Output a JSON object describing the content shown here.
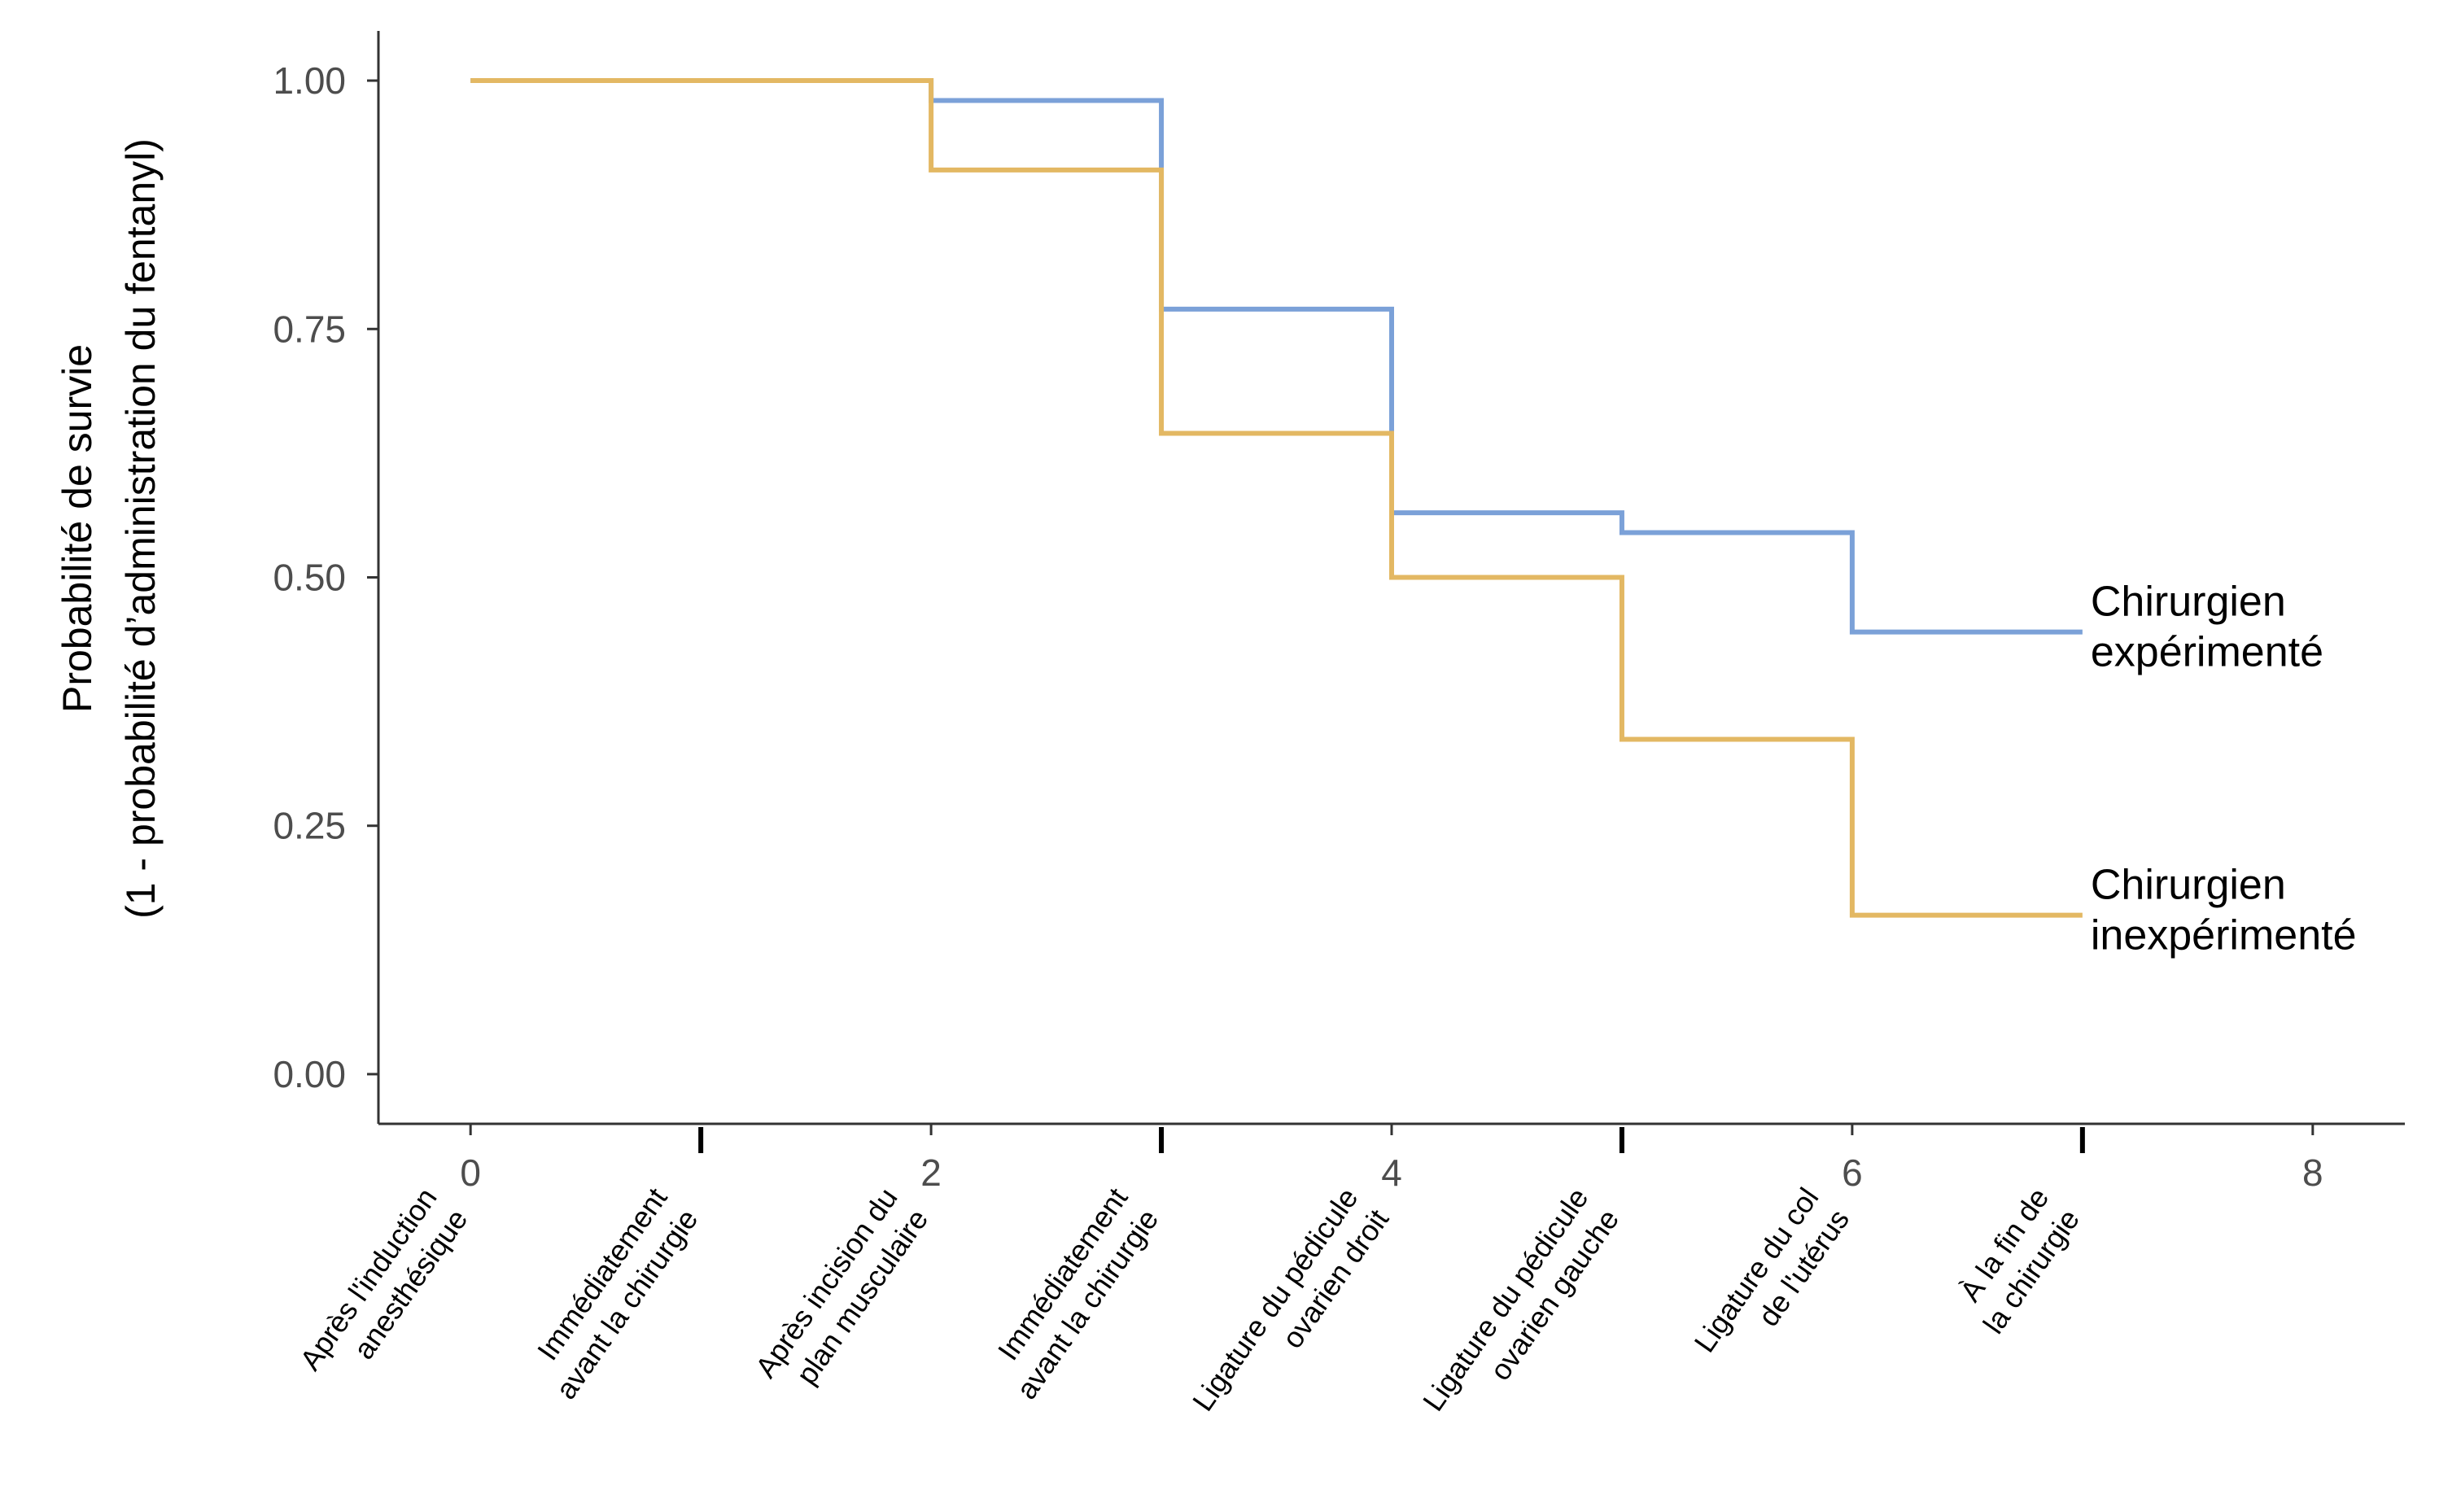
{
  "chart_data": {
    "type": "line",
    "step": true,
    "xlim": [
      -0.4,
      8.4
    ],
    "ylim": [
      -0.05,
      1.05
    ],
    "x_ticks": [
      0,
      2,
      4,
      6,
      8
    ],
    "x_tick_labels": [
      "0",
      "2",
      "4",
      "6",
      "8"
    ],
    "y_ticks": [
      0,
      0.25,
      0.5,
      0.75,
      1.0
    ],
    "y_tick_labels": [
      "0.00",
      "0.25",
      "0.50",
      "0.75",
      "1.00"
    ],
    "ylabel": [
      "Probabilité de survie",
      "(1 - probabilité d’administration du fentanyl)"
    ],
    "grid": false,
    "stage_ticks": [
      1,
      3,
      5,
      7
    ],
    "stages": [
      {
        "x": 0,
        "lines": [
          "Après l'induction",
          "anesthésique"
        ]
      },
      {
        "x": 1,
        "lines": [
          "Immédiatement",
          "avant la chirurgie"
        ]
      },
      {
        "x": 2,
        "lines": [
          "Après incision du",
          "plan musculaire"
        ]
      },
      {
        "x": 3,
        "lines": [
          "Immédiatement",
          "avant la chirurgie"
        ]
      },
      {
        "x": 4,
        "lines": [
          "Ligature du pédicule",
          "ovarien droit"
        ]
      },
      {
        "x": 5,
        "lines": [
          "Ligature du pédicule",
          "ovarien gauche"
        ]
      },
      {
        "x": 6,
        "lines": [
          "Ligature du col",
          "de l'utérus"
        ]
      },
      {
        "x": 7,
        "lines": [
          "À la fin de",
          "la chirurgie"
        ]
      }
    ],
    "series": [
      {
        "name": [
          "Chirurgien",
          "expérimenté"
        ],
        "color": "#7ba1d8",
        "points": [
          [
            0,
            1.0
          ],
          [
            2,
            0.98
          ],
          [
            3,
            0.77
          ],
          [
            4,
            0.565
          ],
          [
            5,
            0.545
          ],
          [
            6,
            0.445
          ],
          [
            7,
            0.445
          ]
        ]
      },
      {
        "name": [
          "Chirurgien",
          "inexpérimenté"
        ],
        "color": "#e3b863",
        "points": [
          [
            0,
            1.0
          ],
          [
            2,
            0.91
          ],
          [
            3,
            0.645
          ],
          [
            4,
            0.5
          ],
          [
            5,
            0.337
          ],
          [
            6,
            0.16
          ],
          [
            7,
            0.16
          ]
        ]
      }
    ]
  }
}
